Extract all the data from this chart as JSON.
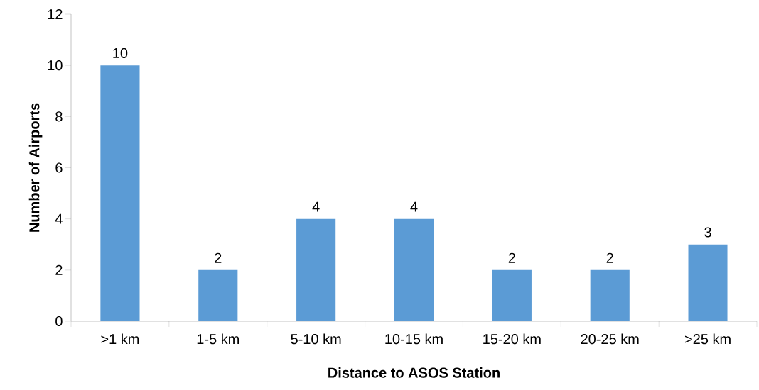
{
  "chart_data": {
    "type": "bar",
    "xlabel": "Distance to ASOS Station",
    "ylabel": "Number of Airports",
    "categories": [
      ">1 km",
      "1-5 km",
      "5-10 km",
      "10-15 km",
      "15-20 km",
      "20-25 km",
      ">25 km"
    ],
    "values": [
      10,
      2,
      4,
      4,
      2,
      2,
      3
    ],
    "color": "#5b9bd5",
    "ylim": [
      0,
      12
    ],
    "yticks": [
      0,
      2,
      4,
      6,
      8,
      10,
      12
    ],
    "grid": false,
    "data_labels": true
  }
}
